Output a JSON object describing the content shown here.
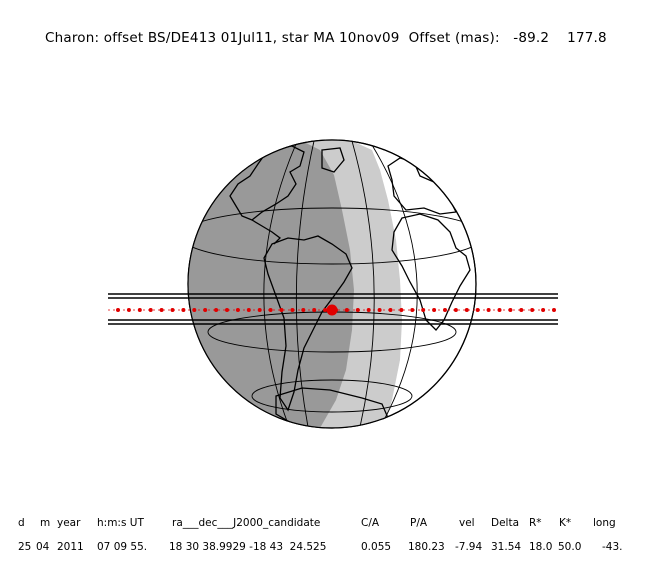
{
  "header": {
    "title_main": "Charon: offset BS/DE413 01Jul11, star MA 10nov09",
    "offset_label": "Offset (mas):",
    "offset_ra": "-89.2",
    "offset_dec": "177.8"
  },
  "colors": {
    "night": "#999999",
    "twilight": "#cccccc",
    "day": "#ffffff",
    "path_dots": "#e00000",
    "lines": "#000000"
  },
  "table": {
    "headers": [
      "d",
      "m",
      "year",
      "h:m:s UT",
      "ra___dec___J2000_candidate",
      "C/A",
      "P/A",
      "vel",
      "Delta",
      "R*",
      "K*",
      "long"
    ],
    "row": [
      "25",
      "04",
      "2011",
      "07 09 55.",
      "18 30 38.9929 -18 43  24.525",
      "0.055",
      "180.23",
      "-7.94",
      "31.54",
      "18.0",
      "50.0",
      "-43."
    ]
  }
}
